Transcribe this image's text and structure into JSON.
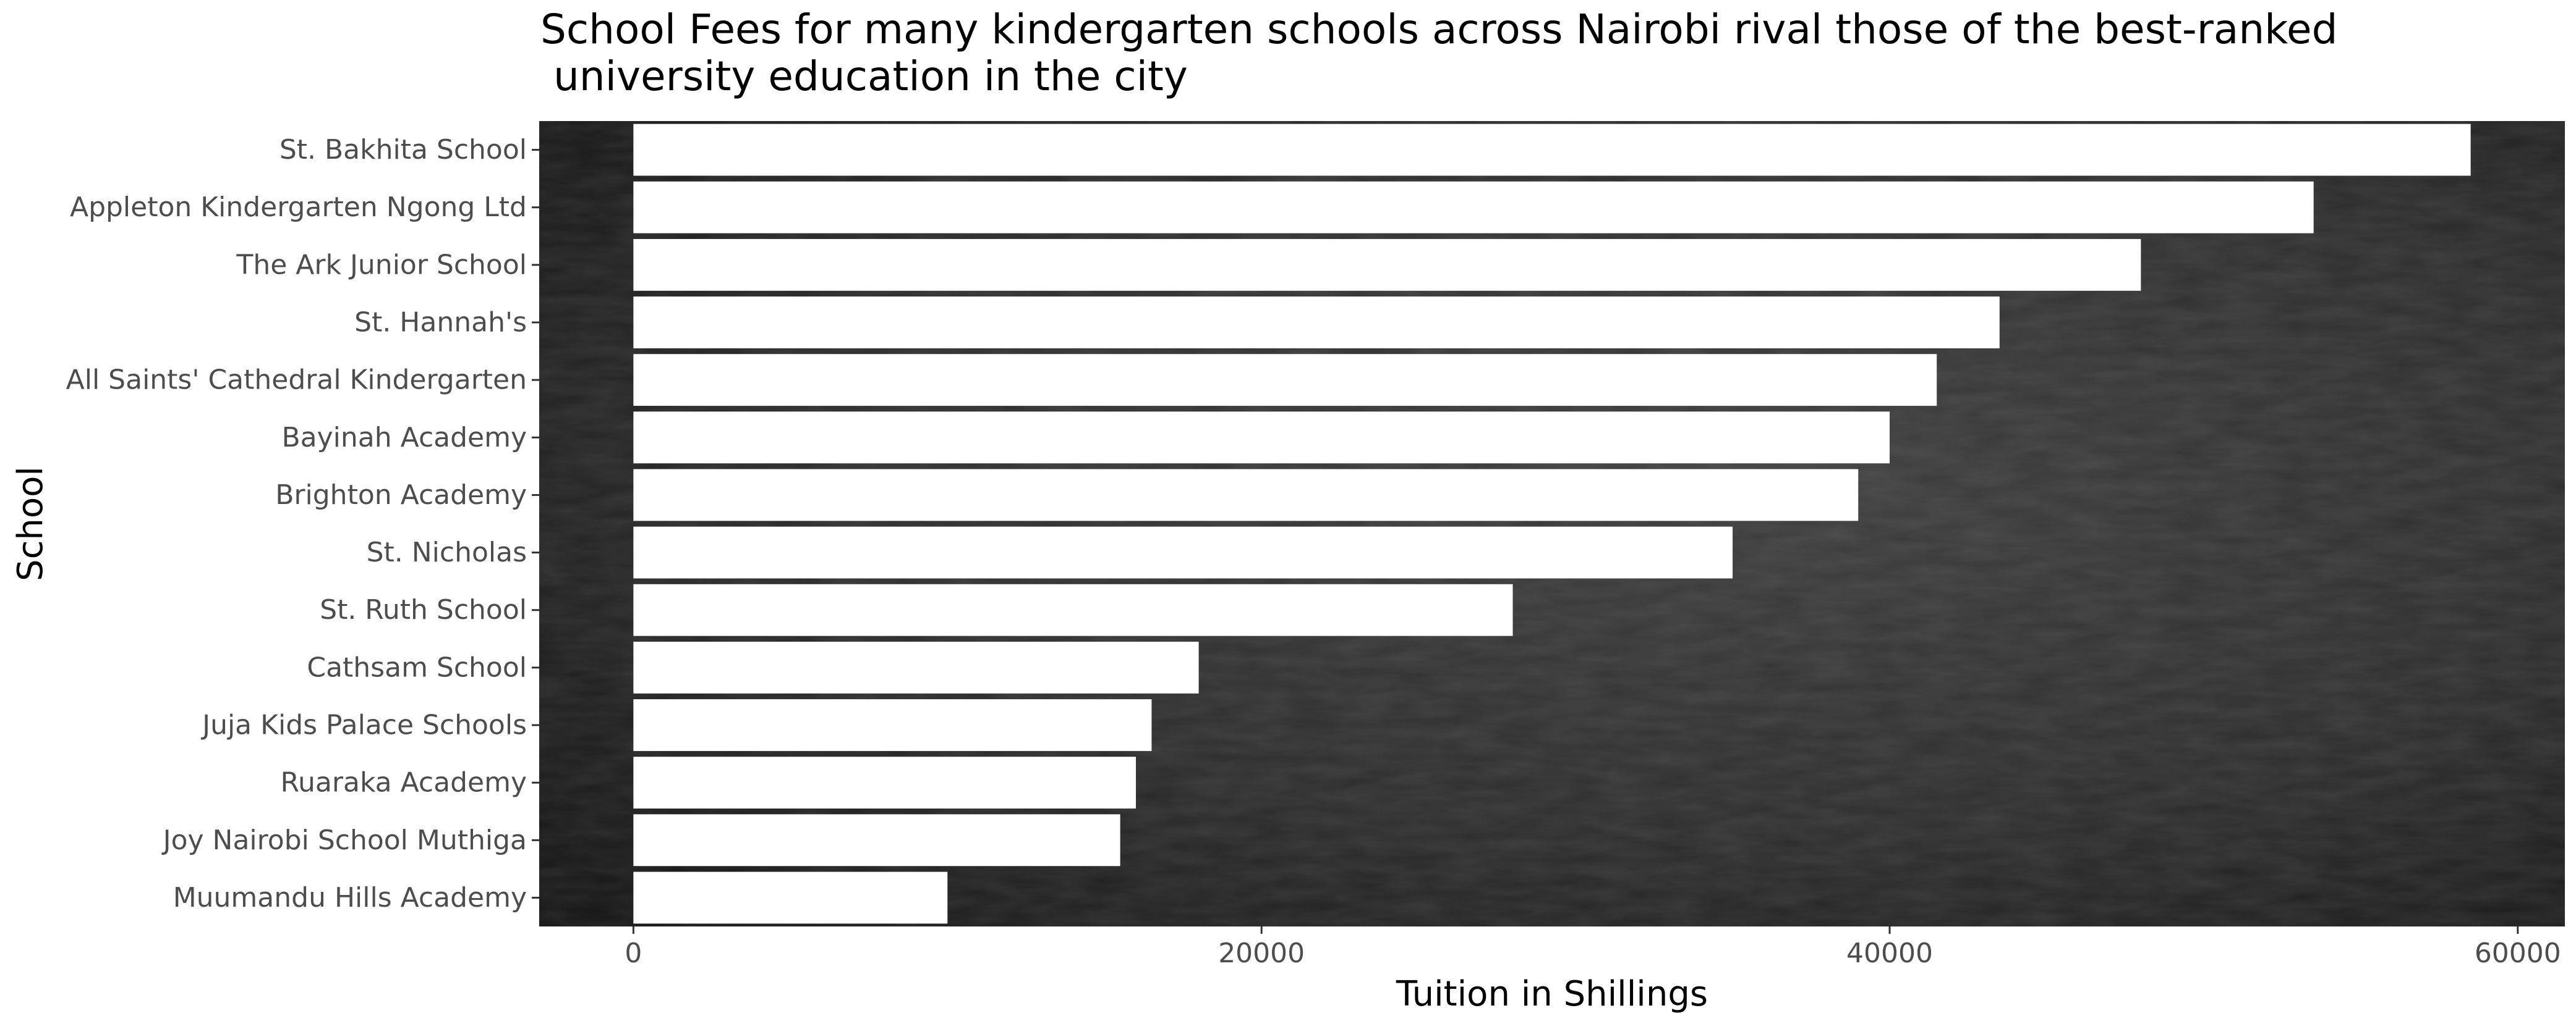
{
  "chart_data": {
    "type": "bar",
    "orientation": "horizontal",
    "title": "School Fees for many kindergarten schools across Nairobi rival those of the best-ranked\n university education in the city",
    "xlabel": "Tuition in Shillings",
    "ylabel": "School",
    "xlim": [
      -3000,
      61500
    ],
    "xticks": [
      0,
      20000,
      40000,
      60000
    ],
    "xtick_labels": [
      "0",
      "20000",
      "40000",
      "60000"
    ],
    "grid": false,
    "background": "chalkboard",
    "bar_color": "#ffffff",
    "categories": [
      "St. Bakhita School",
      "Appleton Kindergarten Ngong Ltd",
      "The Ark Junior School",
      "St. Hannah's",
      "All Saints' Cathedral Kindergarten",
      "Bayinah Academy",
      "Brighton Academy",
      "St. Nicholas",
      "St. Ruth School",
      "Cathsam School",
      "Juja Kids Palace Schools",
      "Ruaraka Academy",
      "Joy Nairobi School Muthiga",
      "Muumandu Hills Academy"
    ],
    "values": [
      58500,
      53500,
      48000,
      43500,
      41500,
      40000,
      39000,
      35000,
      28000,
      18000,
      16500,
      16000,
      15500,
      10000
    ]
  }
}
